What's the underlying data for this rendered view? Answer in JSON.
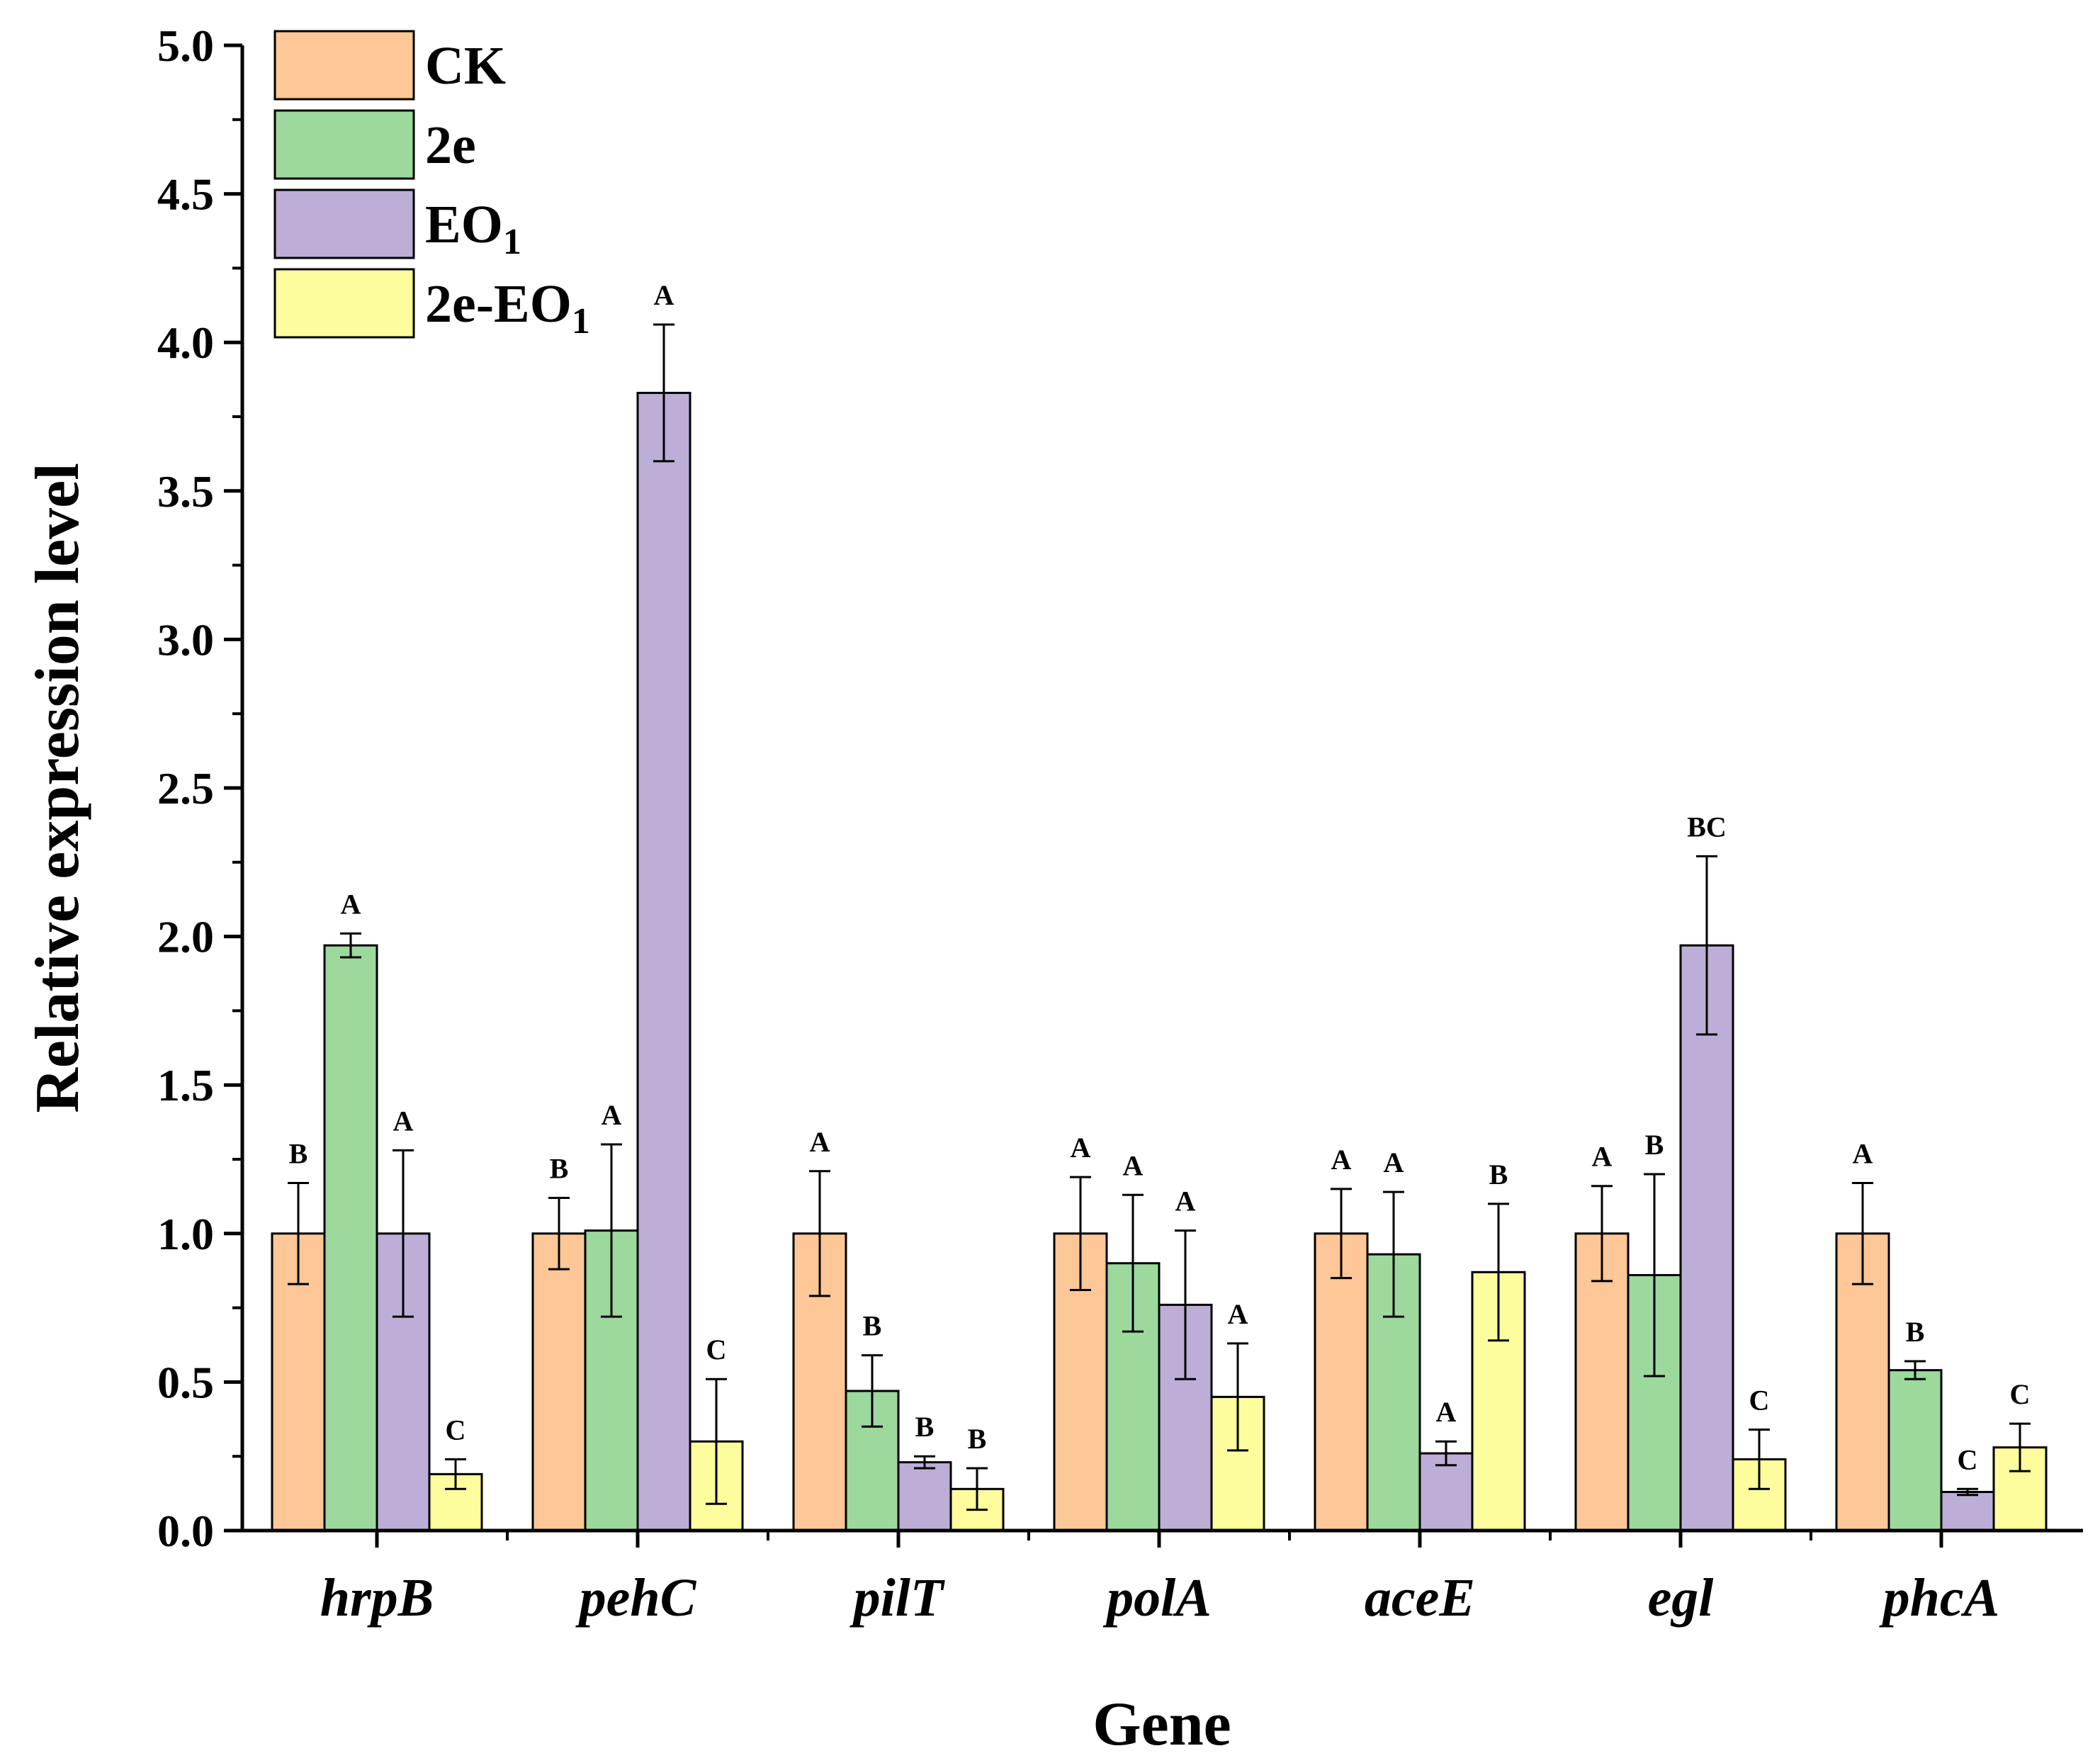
{
  "chart_data": {
    "type": "bar",
    "title": "",
    "xlabel": "Gene",
    "ylabel": "Relative expression level",
    "ylim": [
      0,
      5.0
    ],
    "yticks": [
      "0.0",
      "0.5",
      "1.0",
      "1.5",
      "2.0",
      "2.5",
      "3.0",
      "3.5",
      "4.0",
      "4.5",
      "5.0"
    ],
    "grid": false,
    "legend_position": "top-left",
    "categories": [
      "hrpB",
      "pehC",
      "pilT",
      "polA",
      "aceE",
      "egl",
      "phcA"
    ],
    "series": [
      {
        "name": "CK",
        "legend_main": "CK",
        "legend_sub": "",
        "color": "#fdc797",
        "values": [
          1.0,
          1.0,
          1.0,
          1.0,
          1.0,
          1.0,
          1.0
        ],
        "errors": [
          0.17,
          0.12,
          0.21,
          0.19,
          0.15,
          0.16,
          0.17
        ],
        "letters": [
          "B",
          "B",
          "A",
          "A",
          "A",
          "A",
          "A"
        ]
      },
      {
        "name": "2e",
        "legend_main": "2e",
        "legend_sub": "",
        "color": "#9dd89d",
        "values": [
          1.97,
          1.01,
          0.47,
          0.9,
          0.93,
          0.86,
          0.54
        ],
        "errors": [
          0.04,
          0.29,
          0.12,
          0.23,
          0.21,
          0.34,
          0.03
        ],
        "letters": [
          "A",
          "A",
          "B",
          "A",
          "A",
          "B",
          "B"
        ]
      },
      {
        "name": "EO1",
        "legend_main": "EO",
        "legend_sub": "1",
        "color": "#bcaed6",
        "values": [
          1.0,
          3.83,
          0.23,
          0.76,
          0.26,
          1.97,
          0.13
        ],
        "errors": [
          0.28,
          0.23,
          0.02,
          0.25,
          0.04,
          0.3,
          0.01
        ],
        "letters": [
          "A",
          "A",
          "B",
          "A",
          "A",
          "BC",
          "C"
        ]
      },
      {
        "name": "2e-EO1",
        "legend_main": "2e-EO",
        "legend_sub": "1",
        "color": "#fdfd9e",
        "values": [
          0.19,
          0.3,
          0.14,
          0.45,
          0.87,
          0.24,
          0.28
        ],
        "errors": [
          0.05,
          0.21,
          0.07,
          0.18,
          0.23,
          0.1,
          0.08
        ],
        "letters": [
          "C",
          "C",
          "B",
          "A",
          "B",
          "C",
          "C"
        ]
      }
    ]
  }
}
